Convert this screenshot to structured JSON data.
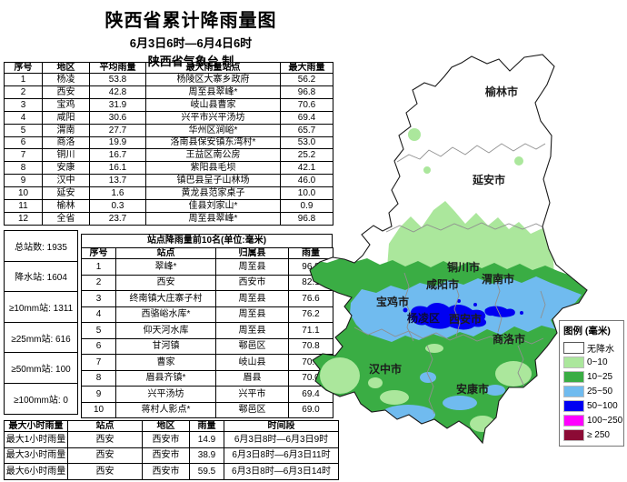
{
  "header": {
    "title": "陕西省累计降雨量图",
    "period": "6月3日6时—6月4日6时",
    "producer": "陕西省气象台 制"
  },
  "region_table": {
    "headers": [
      "序号",
      "地区",
      "平均雨量",
      "最大雨量站点",
      "最大雨量"
    ],
    "rows": [
      [
        "1",
        "杨凌",
        "53.8",
        "杨陵区大寨乡政府",
        "56.2"
      ],
      [
        "2",
        "西安",
        "42.8",
        "周至县翠峰*",
        "96.8"
      ],
      [
        "3",
        "宝鸡",
        "31.9",
        "岐山县曹家",
        "70.6"
      ],
      [
        "4",
        "咸阳",
        "30.6",
        "兴平市兴平汤坊",
        "69.4"
      ],
      [
        "5",
        "渭南",
        "27.7",
        "华州区涧峪*",
        "65.7"
      ],
      [
        "6",
        "商洛",
        "19.9",
        "洛南县保安镇东湾村*",
        "53.0"
      ],
      [
        "7",
        "铜川",
        "16.7",
        "王益区南公房",
        "25.2"
      ],
      [
        "8",
        "安康",
        "16.1",
        "紫阳县毛坝",
        "42.1"
      ],
      [
        "9",
        "汉中",
        "13.7",
        "镇巴县呈子山林场",
        "46.0"
      ],
      [
        "10",
        "延安",
        "1.6",
        "黄龙县范家桌子",
        "10.0"
      ],
      [
        "11",
        "榆林",
        "0.3",
        "佳县刘家山*",
        "0.9"
      ],
      [
        "12",
        "全省",
        "23.7",
        "周至县翠峰*",
        "96.8"
      ]
    ]
  },
  "station_stats": [
    "总站数: 1935",
    "降水站: 1604",
    "≥10mm站: 1311",
    "≥25mm站: 616",
    "≥50mm站: 100",
    "≥100mm站: 0"
  ],
  "top10_table": {
    "title": "站点降雨量前10名(单位:毫米)",
    "headers": [
      "序号",
      "站点",
      "归属县",
      "雨量"
    ],
    "rows": [
      [
        "1",
        "翠峰*",
        "周至县",
        "96.8"
      ],
      [
        "2",
        "西安",
        "西安市",
        "82.1"
      ],
      [
        "3",
        "终南镇大庄寨子村",
        "周至县",
        "76.6"
      ],
      [
        "4",
        "西骆峪水库*",
        "周至县",
        "76.2"
      ],
      [
        "5",
        "仰天河水库",
        "周至县",
        "71.1"
      ],
      [
        "6",
        "甘河镇",
        "鄠邑区",
        "70.8"
      ],
      [
        "7",
        "曹家",
        "岐山县",
        "70.6"
      ],
      [
        "8",
        "眉县齐镇*",
        "眉县",
        "70.0"
      ],
      [
        "9",
        "兴平汤坊",
        "兴平市",
        "69.4"
      ],
      [
        "10",
        "蒋村人影点*",
        "鄠邑区",
        "69.0"
      ]
    ]
  },
  "hourly_table": {
    "headers": [
      "最大小时雨量",
      "站点",
      "地区",
      "雨量",
      "时间段"
    ],
    "rows": [
      [
        "最大1小时雨量",
        "西安",
        "西安市",
        "14.9",
        "6月3日8时—6月3日9时"
      ],
      [
        "最大3小时雨量",
        "西安",
        "西安市",
        "38.9",
        "6月3日8时—6月3日11时"
      ],
      [
        "最大6小时雨量",
        "西安",
        "西安市",
        "59.5",
        "6月3日8时—6月3日14时"
      ]
    ]
  },
  "map": {
    "cities": [
      "榆林市",
      "延安市",
      "铜川市",
      "渭南市",
      "咸阳市",
      "宝鸡市",
      "西安市",
      "商洛市",
      "汉中市",
      "安康市",
      "杨凌区"
    ],
    "colors": {
      "no_rain": "#FFFFFF",
      "r0_10": "#ABE79C",
      "r10_25": "#3AAD44",
      "r25_50": "#70BBEF",
      "r50_100": "#0000F2",
      "r100_250": "#FF00FF",
      "r250": "#8C0A35"
    },
    "legend": {
      "title": "图例 (毫米)",
      "items": [
        {
          "label": "无降水",
          "color": "#FFFFFF"
        },
        {
          "label": "0~10",
          "color": "#ABE79C"
        },
        {
          "label": "10~25",
          "color": "#3AAD44"
        },
        {
          "label": "25~50",
          "color": "#70BBEF"
        },
        {
          "label": "50~100",
          "color": "#0000F2"
        },
        {
          "label": "100~250",
          "color": "#FF00FF"
        },
        {
          "label": "≥ 250",
          "color": "#8C0A35"
        }
      ]
    }
  }
}
